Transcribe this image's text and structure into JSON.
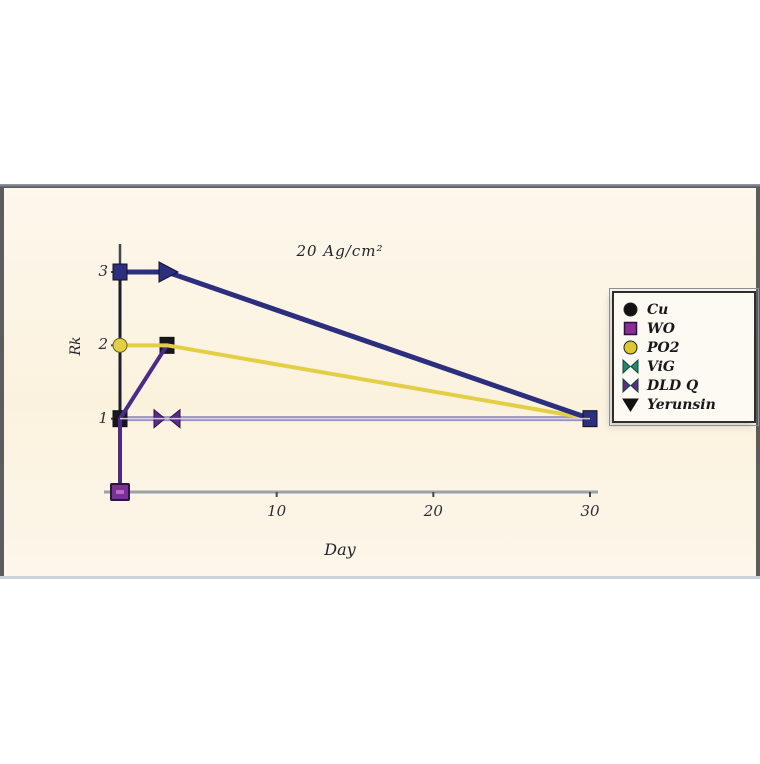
{
  "slide": {
    "background_color": "#fcf4e5",
    "frame_color": "#4e5257"
  },
  "chart_data": {
    "type": "line",
    "title": "20 Ag/cm²",
    "xlabel": "Day",
    "ylabel": "Rk",
    "xlim": [
      0,
      31
    ],
    "ylim": [
      0,
      3.4
    ],
    "xticks": [
      "10",
      "20",
      "30"
    ],
    "yticks": [
      "1",
      "2",
      "3"
    ],
    "grid": false,
    "axis_color": "#43474e",
    "xaxis_line_color": "#9aa1ab",
    "series": [
      {
        "name": "DLD Q",
        "color": "#9a90c2",
        "width": 5,
        "points": [
          [
            0,
            1
          ],
          [
            3,
            1
          ],
          [
            30,
            1
          ]
        ],
        "markers": [
          {
            "type": "bowtie",
            "x": 3,
            "y": 1,
            "color": "#5a2d8a"
          }
        ]
      },
      {
        "name": "Yerunsin",
        "color": "#1c1c30",
        "width": 3,
        "points": [
          [
            0,
            3
          ],
          [
            0,
            1
          ],
          [
            3,
            2
          ]
        ],
        "markers": [
          {
            "type": "square",
            "x": 0,
            "y": 1,
            "color": "#17171f"
          },
          {
            "type": "square",
            "x": 3,
            "y": 2,
            "color": "#17171f"
          }
        ]
      },
      {
        "name": "ViG",
        "color": "#4c2b87",
        "width": 4,
        "points": [
          [
            0,
            0
          ],
          [
            0,
            1
          ],
          [
            3,
            2
          ]
        ],
        "markers": []
      },
      {
        "name": "WO",
        "color": "#5b2b8d",
        "width": 3,
        "points": [
          [
            0,
            0
          ]
        ],
        "markers": [
          {
            "type": "square-outline",
            "x": 0,
            "y": 0,
            "color": "#7b2f97"
          }
        ]
      },
      {
        "name": "PO2",
        "color": "#e3cf45",
        "width": 4,
        "points": [
          [
            0,
            2
          ],
          [
            3,
            2
          ],
          [
            30,
            1
          ]
        ],
        "markers": [
          {
            "type": "circle",
            "x": 0,
            "y": 2,
            "color": "#e3cf45"
          }
        ]
      },
      {
        "name": "Cu",
        "color": "#2b2f7e",
        "width": 5,
        "points": [
          [
            0,
            3
          ],
          [
            3,
            3
          ],
          [
            30,
            1
          ]
        ],
        "markers": [
          {
            "type": "square",
            "x": 0,
            "y": 3,
            "color": "#2b2f7e"
          },
          {
            "type": "triangle-right",
            "x": 3,
            "y": 3,
            "color": "#2b2f7e"
          },
          {
            "type": "square",
            "x": 30,
            "y": 1,
            "color": "#2b2f7e"
          }
        ]
      }
    ],
    "legend": {
      "position": "right",
      "entries": [
        {
          "label": "Cu",
          "marker": "circle",
          "color": "#121212"
        },
        {
          "label": "WO",
          "marker": "square",
          "color": "#8a2f94"
        },
        {
          "label": "PO2",
          "marker": "circle",
          "color": "#ddc832"
        },
        {
          "label": "ViG",
          "marker": "bowtie",
          "color": "#1f8a70"
        },
        {
          "label": "DLD Q",
          "marker": "bowtie",
          "color": "#5a2d8a"
        },
        {
          "label": "Yerunsin",
          "marker": "triangle-down",
          "color": "#121212"
        }
      ]
    }
  }
}
